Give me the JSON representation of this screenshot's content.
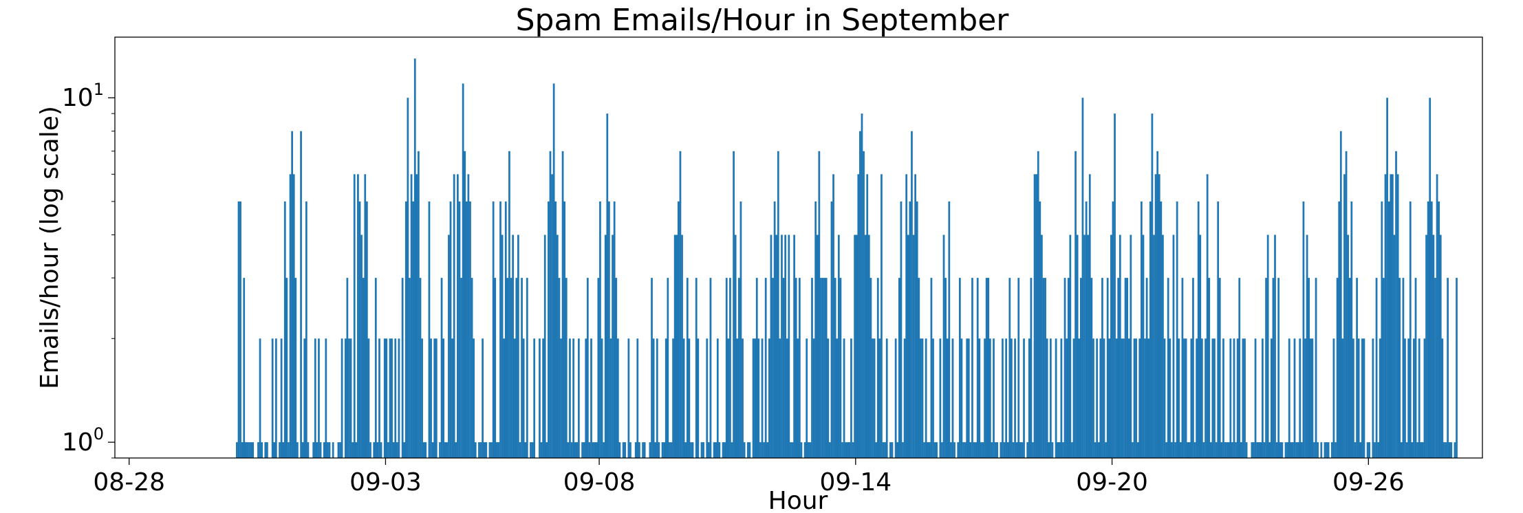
{
  "chart_data": {
    "type": "bar",
    "title": "Spam Emails/Hour in September",
    "xlabel": "Hour",
    "ylabel": "Emails/hour (log scale)",
    "y_scale": "log",
    "ylim": [
      0.9,
      15
    ],
    "y_ticks": [
      {
        "value": 1,
        "base": "10",
        "exp": "0"
      },
      {
        "value": 10,
        "base": "10",
        "exp": "1"
      }
    ],
    "x_range": [
      "2023-08-27T16:00",
      "2023-09-28T16:00"
    ],
    "x_ticks": [
      {
        "date": "2023-08-28T00:00",
        "label": "08-28"
      },
      {
        "date": "2023-09-03T00:00",
        "label": "09-03"
      },
      {
        "date": "2023-09-08T00:00",
        "label": "09-08"
      },
      {
        "date": "2023-09-14T00:00",
        "label": "09-14"
      },
      {
        "date": "2023-09-20T00:00",
        "label": "09-20"
      },
      {
        "date": "2023-09-26T00:00",
        "label": "09-26"
      }
    ],
    "bar_color": "#1f77b4",
    "grid": false,
    "series_start": "2023-08-30T12:00",
    "bin_hours": 1,
    "values": [
      1,
      5,
      5,
      1,
      3,
      1,
      1,
      1,
      1,
      1,
      0,
      0,
      1,
      2,
      1,
      0,
      1,
      1,
      0,
      0,
      2,
      1,
      2,
      0,
      1,
      2,
      1,
      5,
      3,
      1,
      6,
      8,
      6,
      3,
      1,
      0,
      8,
      1,
      2,
      5,
      1,
      0,
      0,
      1,
      2,
      1,
      2,
      1,
      0,
      1,
      2,
      1,
      1,
      0,
      1,
      0,
      0,
      1,
      1,
      2,
      0,
      2,
      3,
      2,
      2,
      1,
      6,
      1,
      6,
      5,
      4,
      3,
      6,
      5,
      2,
      1,
      0,
      1,
      3,
      1,
      2,
      1,
      0,
      2,
      2,
      1,
      2,
      2,
      1,
      2,
      1,
      2,
      0,
      3,
      1,
      5,
      10,
      3,
      6,
      5,
      13,
      6,
      7,
      3,
      2,
      1,
      1,
      0,
      5,
      2,
      1,
      2,
      2,
      0,
      1,
      3,
      2,
      1,
      1,
      4,
      5,
      2,
      6,
      1,
      6,
      5,
      3,
      11,
      7,
      5,
      6,
      5,
      3,
      2,
      1,
      0,
      1,
      1,
      2,
      1,
      1,
      0,
      1,
      1,
      5,
      3,
      1,
      1,
      5,
      4,
      2,
      5,
      3,
      7,
      3,
      4,
      2,
      3,
      4,
      1,
      3,
      2,
      1,
      3,
      0,
      1,
      1,
      2,
      0,
      0,
      2,
      1,
      2,
      4,
      1,
      5,
      7,
      6,
      11,
      5,
      4,
      3,
      2,
      7,
      5,
      3,
      1,
      2,
      1,
      2,
      1,
      1,
      2,
      0,
      1,
      1,
      2,
      3,
      1,
      2,
      1,
      1,
      1,
      3,
      5,
      2,
      1,
      4,
      9,
      5,
      2,
      4,
      5,
      3,
      2,
      1,
      0,
      1,
      1,
      0,
      2,
      1,
      0,
      0,
      1,
      2,
      1,
      0,
      1,
      1,
      0,
      0,
      1,
      3,
      2,
      1,
      2,
      1,
      0,
      1,
      1,
      2,
      3,
      1,
      1,
      2,
      4,
      4,
      5,
      7,
      4,
      2,
      1,
      3,
      2,
      1,
      1,
      0,
      3,
      2,
      0,
      1,
      1,
      0,
      2,
      1,
      3,
      0,
      1,
      1,
      2,
      1,
      0,
      1,
      1,
      3,
      2,
      3,
      1,
      7,
      4,
      2,
      3,
      5,
      2,
      1,
      0,
      1,
      1,
      0,
      2,
      2,
      3,
      2,
      1,
      2,
      1,
      3,
      1,
      2,
      4,
      3,
      5,
      4,
      7,
      2,
      4,
      3,
      4,
      2,
      4,
      1,
      1,
      4,
      3,
      2,
      3,
      1,
      0,
      1,
      2,
      1,
      1,
      3,
      2,
      5,
      4,
      7,
      3,
      3,
      3,
      3,
      2,
      1,
      5,
      6,
      3,
      2,
      4,
      3,
      1,
      2,
      1,
      1,
      1,
      2,
      1,
      4,
      4,
      6,
      8,
      9,
      7,
      4,
      6,
      4,
      3,
      2,
      2,
      1,
      3,
      2,
      6,
      1,
      1,
      2,
      0,
      1,
      1,
      0,
      2,
      1,
      3,
      5,
      1,
      2,
      6,
      4,
      5,
      8,
      4,
      6,
      5,
      3,
      2,
      2,
      1,
      2,
      1,
      1,
      3,
      2,
      1,
      1,
      0,
      2,
      1,
      4,
      3,
      2,
      5,
      1,
      2,
      1,
      0,
      1,
      3,
      2,
      1,
      1,
      2,
      2,
      1,
      3,
      1,
      1,
      3,
      2,
      1,
      1,
      2,
      3,
      3,
      2,
      1,
      2,
      1,
      1,
      0,
      1,
      2,
      1,
      2,
      1,
      3,
      2,
      1,
      2,
      1,
      3,
      1,
      1,
      2,
      0,
      1,
      2,
      3,
      1,
      6,
      6,
      7,
      5,
      4,
      3,
      3,
      2,
      1,
      2,
      1,
      0,
      2,
      1,
      1,
      2,
      1,
      3,
      2,
      3,
      4,
      1,
      2,
      7,
      4,
      2,
      3,
      10,
      4,
      5,
      4,
      6,
      3,
      2,
      1,
      2,
      1,
      2,
      3,
      2,
      1,
      3,
      2,
      4,
      5,
      9,
      2,
      3,
      4,
      2,
      2,
      3,
      3,
      2,
      4,
      1,
      2,
      2,
      1,
      2,
      5,
      4,
      2,
      3,
      2,
      5,
      9,
      4,
      6,
      7,
      6,
      5,
      4,
      2,
      1,
      3,
      2,
      1,
      4,
      1,
      5,
      2,
      1,
      3,
      2,
      2,
      1,
      1,
      2,
      3,
      1,
      2,
      5,
      4,
      2,
      1,
      2,
      6,
      3,
      1,
      2,
      2,
      1,
      5,
      3,
      1,
      2,
      1,
      1,
      1,
      2,
      1,
      2,
      1,
      2,
      3,
      1,
      2,
      2,
      1,
      0,
      0,
      1,
      1,
      2,
      1,
      1,
      1,
      2,
      1,
      3,
      4,
      1,
      2,
      3,
      4,
      1,
      3,
      1,
      1,
      0,
      1,
      1,
      2,
      1,
      1,
      2,
      1,
      1,
      2,
      1,
      5,
      2,
      4,
      3,
      2,
      2,
      1,
      3,
      1,
      0,
      1,
      0,
      1,
      1,
      1,
      0,
      1,
      2,
      1,
      3,
      5,
      8,
      2,
      6,
      7,
      4,
      3,
      5,
      2,
      1,
      3,
      2,
      1,
      2,
      2,
      0,
      1,
      1,
      0,
      2,
      1,
      3,
      1,
      2,
      5,
      3,
      6,
      10,
      5,
      6,
      6,
      4,
      7,
      6,
      3,
      1,
      3,
      2,
      1,
      2,
      5,
      1,
      2,
      3,
      1,
      2,
      1,
      1,
      2,
      4,
      5,
      10,
      5,
      4,
      3,
      6,
      5,
      4,
      2,
      1,
      1,
      3,
      1,
      1,
      0,
      1,
      3
    ]
  }
}
